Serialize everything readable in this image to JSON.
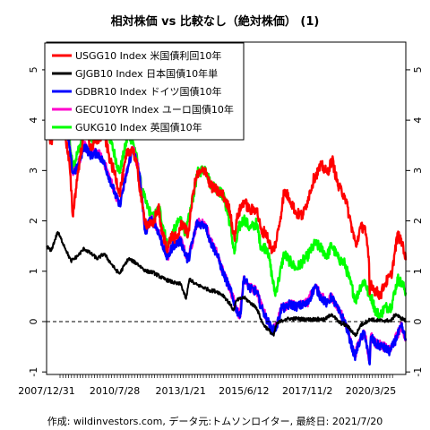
{
  "chart_data": {
    "type": "line",
    "title": "相対株価 vs 比較なし（絶対株価） (1)",
    "xlabel": "",
    "ylabel": "",
    "caption": "作成: wildinvestors.com, データ元:トムソンロイター, 最終日: 2021/7/20",
    "ylim": [
      -1.05,
      5.55
    ],
    "yticks": [
      -1,
      0,
      1,
      2,
      3,
      4,
      5
    ],
    "x_tick_labels": [
      "2007/12/31",
      "2010/7/28",
      "2013/1/21",
      "2015/6/12",
      "2017/11/2",
      "2020/3/25"
    ],
    "x_range": [
      "2007/12/31",
      "2021/7/20"
    ],
    "reference_line": 0,
    "grid": false,
    "legend_position": "top-left",
    "series": [
      {
        "name": "USGG10 Index 米国債利回10年",
        "color": "#ff0000",
        "x": [
          "2007/12/31",
          "2008/3/1",
          "2008/6/1",
          "2008/9/1",
          "2008/11/15",
          "2008/12/25",
          "2009/3/1",
          "2009/6/10",
          "2009/9/1",
          "2009/12/1",
          "2010/3/1",
          "2010/6/1",
          "2010/7/28",
          "2010/10/1",
          "2011/1/15",
          "2011/4/1",
          "2011/6/1",
          "2011/8/15",
          "2011/10/1",
          "2012/1/1",
          "2012/3/20",
          "2012/5/1",
          "2012/7/25",
          "2012/9/15",
          "2012/12/1",
          "2013/1/21",
          "2013/3/1",
          "2013/5/1",
          "2013/7/15",
          "2013/9/1",
          "2013/12/31",
          "2014/3/1",
          "2014/6/1",
          "2014/9/1",
          "2014/12/1",
          "2015/1/30",
          "2015/3/15",
          "2015/6/12",
          "2015/9/1",
          "2015/12/1",
          "2016/2/10",
          "2016/4/1",
          "2016/7/8",
          "2016/9/1",
          "2016/11/20",
          "2016/12/15",
          "2017/3/1",
          "2017/6/1",
          "2017/9/1",
          "2017/11/2",
          "2018/2/1",
          "2018/5/15",
          "2018/8/1",
          "2018/10/10",
          "2019/1/1",
          "2019/4/1",
          "2019/6/1",
          "2019/9/1",
          "2019/11/1",
          "2020/1/1",
          "2020/3/1",
          "2020/3/9",
          "2020/3/25",
          "2020/5/1",
          "2020/8/4",
          "2020/10/1",
          "2021/1/1",
          "2021/3/31",
          "2021/5/1",
          "2021/6/15",
          "2021/7/20"
        ],
        "values": [
          4.02,
          3.55,
          4.1,
          3.85,
          3.05,
          2.1,
          2.9,
          3.9,
          3.45,
          3.6,
          3.75,
          3.15,
          2.95,
          2.55,
          3.35,
          3.45,
          3.05,
          2.25,
          1.95,
          1.9,
          2.3,
          1.8,
          1.45,
          1.7,
          1.65,
          1.9,
          1.95,
          1.7,
          2.6,
          2.9,
          3.02,
          2.7,
          2.6,
          2.5,
          2.2,
          1.65,
          2.1,
          2.4,
          2.2,
          2.25,
          1.75,
          1.8,
          1.38,
          1.6,
          2.3,
          2.6,
          2.45,
          2.15,
          2.1,
          2.4,
          2.85,
          3.1,
          2.95,
          3.22,
          2.68,
          2.5,
          2.1,
          1.5,
          1.85,
          1.9,
          1.15,
          0.54,
          0.8,
          0.65,
          0.52,
          0.75,
          0.92,
          1.74,
          1.62,
          1.5,
          1.22
        ]
      },
      {
        "name": "GJGB10 Index 日本国債10年単",
        "color": "#000000",
        "x": [
          "2007/12/31",
          "2008/3/1",
          "2008/6/1",
          "2008/9/1",
          "2008/12/1",
          "2009/3/1",
          "2009/6/1",
          "2009/9/1",
          "2009/12/1",
          "2010/3/1",
          "2010/7/28",
          "2010/10/1",
          "2011/2/1",
          "2011/6/1",
          "2011/10/1",
          "2012/1/1",
          "2012/6/1",
          "2012/12/1",
          "2013/1/21",
          "2013/4/5",
          "2013/5/23",
          "2013/8/1",
          "2013/12/1",
          "2014/3/1",
          "2014/6/1",
          "2014/9/1",
          "2014/12/1",
          "2015/1/20",
          "2015/3/1",
          "2015/6/12",
          "2015/9/1",
          "2015/12/1",
          "2016/2/1",
          "2016/3/1",
          "2016/7/27",
          "2016/9/1",
          "2016/11/20",
          "2017/1/1",
          "2017/6/1",
          "2017/11/2",
          "2018/3/1",
          "2018/7/1",
          "2018/10/1",
          "2019/1/1",
          "2019/3/1",
          "2019/5/1",
          "2019/8/30",
          "2019/11/1",
          "2020/1/1",
          "2020/3/25",
          "2020/6/1",
          "2020/9/1",
          "2021/1/1",
          "2021/3/1",
          "2021/5/1",
          "2021/7/20"
        ],
        "values": [
          1.5,
          1.4,
          1.78,
          1.5,
          1.2,
          1.3,
          1.45,
          1.35,
          1.25,
          1.35,
          1.05,
          0.95,
          1.25,
          1.15,
          1.0,
          0.98,
          0.85,
          0.75,
          0.75,
          0.45,
          0.85,
          0.75,
          0.68,
          0.62,
          0.6,
          0.52,
          0.35,
          0.22,
          0.42,
          0.48,
          0.38,
          0.28,
          0.05,
          -0.05,
          -0.28,
          -0.05,
          0.02,
          0.05,
          0.06,
          0.04,
          0.05,
          0.04,
          0.15,
          0.0,
          -0.05,
          -0.08,
          -0.28,
          -0.08,
          -0.02,
          0.05,
          0.02,
          0.02,
          0.02,
          0.15,
          0.08,
          0.02
        ]
      },
      {
        "name": "GDBR10 Index ドイツ国債10年",
        "color": "#0000ff",
        "x": [
          "2007/12/31",
          "2008/3/1",
          "2008/6/1",
          "2008/9/1",
          "2008/12/25",
          "2009/3/1",
          "2009/6/1",
          "2009/9/1",
          "2009/12/1",
          "2010/3/1",
          "2010/7/28",
          "2010/10/1",
          "2011/1/1",
          "2011/4/1",
          "2011/7/1",
          "2011/9/22",
          "2011/12/1",
          "2012/3/1",
          "2012/7/23",
          "2012/10/1",
          "2013/1/21",
          "2013/5/1",
          "2013/9/1",
          "2013/12/31",
          "2014/3/1",
          "2014/6/1",
          "2014/9/1",
          "2014/12/1",
          "2015/2/15",
          "2015/4/17",
          "2015/6/12",
          "2015/9/1",
          "2015/12/1",
          "2016/2/1",
          "2016/3/1",
          "2016/7/8",
          "2016/9/1",
          "2016/11/15",
          "2017/1/1",
          "2017/3/1",
          "2017/6/1",
          "2017/11/2",
          "2018/2/15",
          "2018/5/1",
          "2018/8/1",
          "2018/10/1",
          "2019/1/1",
          "2019/4/1",
          "2019/6/1",
          "2019/8/16",
          "2019/11/1",
          "2020/1/1",
          "2020/3/9",
          "2020/3/25",
          "2020/6/1",
          "2020/9/1",
          "2020/12/15",
          "2021/2/1",
          "2021/5/20",
          "2021/6/15",
          "2021/7/20"
        ],
        "values": [
          4.3,
          3.9,
          4.6,
          4.2,
          2.95,
          3.05,
          3.5,
          3.3,
          3.35,
          3.15,
          2.55,
          2.3,
          2.9,
          3.45,
          2.95,
          1.75,
          2.05,
          1.85,
          1.25,
          1.5,
          1.6,
          1.2,
          1.95,
          1.92,
          1.6,
          1.35,
          0.95,
          0.65,
          0.3,
          0.08,
          0.88,
          0.65,
          0.6,
          0.3,
          0.2,
          -0.18,
          -0.12,
          0.3,
          0.25,
          0.35,
          0.3,
          0.35,
          0.7,
          0.5,
          0.35,
          0.5,
          0.22,
          0.0,
          -0.3,
          -0.7,
          -0.35,
          -0.22,
          -0.85,
          -0.3,
          -0.45,
          -0.5,
          -0.6,
          -0.45,
          -0.1,
          -0.2,
          -0.38
        ]
      },
      {
        "name": "GECU10YR Index ユーロ国債10年",
        "color": "#ff00cc",
        "x": [
          "2007/12/31",
          "2008/3/1",
          "2008/6/1",
          "2008/9/1",
          "2008/12/25",
          "2009/3/1",
          "2009/6/1",
          "2009/9/1",
          "2009/12/1",
          "2010/3/1",
          "2010/7/28",
          "2010/10/1",
          "2011/1/1",
          "2011/4/1",
          "2011/7/1",
          "2011/9/22",
          "2011/12/1",
          "2012/3/1",
          "2012/7/23",
          "2012/10/1",
          "2013/1/21",
          "2013/5/1",
          "2013/9/1",
          "2013/12/31",
          "2014/3/1",
          "2014/6/1",
          "2014/9/1",
          "2014/12/1",
          "2015/2/15",
          "2015/4/17",
          "2015/6/12",
          "2015/9/1",
          "2015/12/1",
          "2016/2/1",
          "2016/3/1",
          "2016/7/8",
          "2016/9/1",
          "2016/11/15",
          "2017/1/1",
          "2017/3/1",
          "2017/6/1",
          "2017/11/2",
          "2018/2/15",
          "2018/5/1",
          "2018/8/1",
          "2018/10/1",
          "2019/1/1",
          "2019/4/1",
          "2019/6/1",
          "2019/8/16",
          "2019/11/1",
          "2020/1/1",
          "2020/3/9",
          "2020/3/25",
          "2020/6/1",
          "2020/9/1",
          "2020/12/15",
          "2021/2/1",
          "2021/5/20",
          "2021/6/15",
          "2021/7/20"
        ],
        "values": [
          4.33,
          3.92,
          4.62,
          4.22,
          2.97,
          3.08,
          3.52,
          3.32,
          3.37,
          3.17,
          2.57,
          2.32,
          2.92,
          3.47,
          2.97,
          1.77,
          2.07,
          1.87,
          1.27,
          1.52,
          1.62,
          1.22,
          1.97,
          1.94,
          1.62,
          1.37,
          0.97,
          0.67,
          0.32,
          0.1,
          0.9,
          0.67,
          0.62,
          0.32,
          0.22,
          -0.16,
          -0.1,
          0.32,
          0.27,
          0.37,
          0.32,
          0.37,
          0.72,
          0.52,
          0.37,
          0.52,
          0.24,
          0.02,
          -0.28,
          -0.68,
          -0.33,
          -0.2,
          -0.83,
          -0.28,
          -0.43,
          -0.48,
          -0.58,
          -0.43,
          -0.08,
          -0.18,
          -0.36
        ]
      },
      {
        "name": "GUKG10 Index 英国債10年",
        "color": "#00ff00",
        "x": [
          "2007/12/31",
          "2008/3/1",
          "2008/6/1",
          "2008/9/1",
          "2008/12/25",
          "2009/3/1",
          "2009/6/1",
          "2009/9/1",
          "2009/12/1",
          "2010/3/1",
          "2010/7/28",
          "2010/10/1",
          "2011/2/1",
          "2011/5/1",
          "2011/8/1",
          "2011/10/1",
          "2012/1/1",
          "2012/4/1",
          "2012/7/23",
          "2012/10/1",
          "2013/1/21",
          "2013/4/1",
          "2013/7/1",
          "2013/9/10",
          "2013/12/31",
          "2014/3/1",
          "2014/6/1",
          "2014/9/1",
          "2014/12/1",
          "2015/1/30",
          "2015/4/1",
          "2015/6/12",
          "2015/9/1",
          "2015/12/1",
          "2016/2/1",
          "2016/5/1",
          "2016/8/12",
          "2016/10/1",
          "2016/12/15",
          "2017/3/1",
          "2017/6/1",
          "2017/11/2",
          "2018/2/15",
          "2018/5/15",
          "2018/8/1",
          "2018/10/1",
          "2019/1/1",
          "2019/4/1",
          "2019/6/1",
          "2019/8/30",
          "2019/11/1",
          "2020/1/1",
          "2020/3/1",
          "2020/3/25",
          "2020/6/1",
          "2020/8/1",
          "2020/10/1",
          "2021/1/1",
          "2021/3/31",
          "2021/5/1",
          "2021/6/15",
          "2021/7/20"
        ],
        "values": [
          4.55,
          4.35,
          5.15,
          4.55,
          3.05,
          3.35,
          3.75,
          3.6,
          3.9,
          4.05,
          3.3,
          2.95,
          3.75,
          3.45,
          2.65,
          2.35,
          2.05,
          2.25,
          1.5,
          1.75,
          2.05,
          1.75,
          2.4,
          2.95,
          3.05,
          2.75,
          2.65,
          2.5,
          1.95,
          1.35,
          1.85,
          2.05,
          1.85,
          1.95,
          1.5,
          1.45,
          0.55,
          0.82,
          1.35,
          1.2,
          1.05,
          1.3,
          1.55,
          1.45,
          1.3,
          1.52,
          1.25,
          1.15,
          0.85,
          0.42,
          0.7,
          0.82,
          0.5,
          0.52,
          0.2,
          0.12,
          0.28,
          0.3,
          0.85,
          0.8,
          0.7,
          0.58
        ]
      }
    ]
  }
}
